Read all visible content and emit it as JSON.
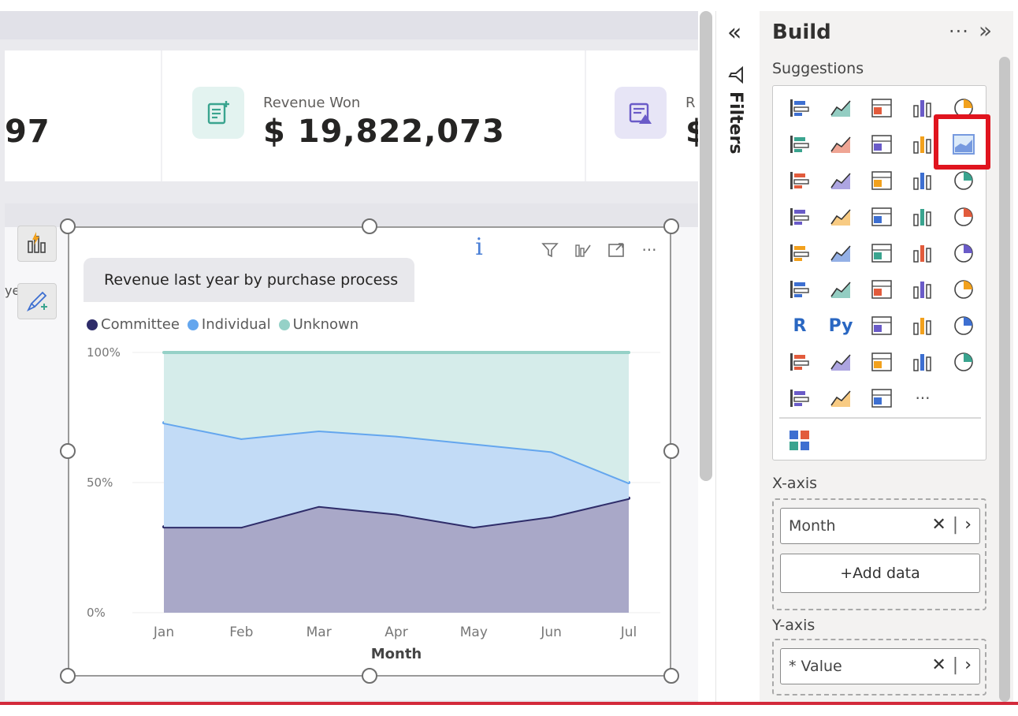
{
  "kpis": [
    {
      "value": "97"
    },
    {
      "label": "Revenue Won",
      "value": "$ 19,822,073"
    },
    {
      "label": "R",
      "value": "$"
    }
  ],
  "side_label": "year",
  "visual": {
    "title": "Revenue last year by purchase process",
    "info_label": "i",
    "legend": [
      {
        "name": "Committee",
        "color": "#2e2c69"
      },
      {
        "name": "Individual",
        "color": "#64a6ee"
      },
      {
        "name": "Unknown",
        "color": "#95d1c7"
      }
    ]
  },
  "chart_data": {
    "type": "area",
    "stacked_percent": true,
    "x": [
      "Jan",
      "Feb",
      "Mar",
      "Apr",
      "May",
      "Jun",
      "Jul"
    ],
    "xlabel": "Month",
    "ylabel": "",
    "y_ticks": [
      "0%",
      "50%",
      "100%"
    ],
    "ylim": [
      0,
      100
    ],
    "series": [
      {
        "name": "Committee",
        "values": [
          33,
          33,
          41,
          38,
          33,
          37,
          44
        ],
        "color": "#2e2c69",
        "fill": "#a9a8c8"
      },
      {
        "name": "Individual",
        "values": [
          40,
          34,
          29,
          30,
          32,
          25,
          6
        ],
        "color": "#64a6ee",
        "fill": "#c2dbf6"
      },
      {
        "name": "Unknown",
        "values": [
          27,
          33,
          30,
          32,
          35,
          38,
          50
        ],
        "color": "#95d1c7",
        "fill": "#d5ecea"
      }
    ]
  },
  "filters": {
    "label": "Filters"
  },
  "build": {
    "title": "Build",
    "more": "···",
    "suggestions_label": "Suggestions",
    "visual_icons": [
      "stacked-bar-chart-icon",
      "stacked-column-chart-icon",
      "clustered-bar-chart-icon",
      "clustered-column-chart-icon",
      "100-percent-bar-chart-icon",
      "100-percent-column-chart-icon",
      "line-chart-icon",
      "area-chart-icon",
      "stacked-area-chart-icon",
      "100-percent-stacked-area-chart-icon",
      "line-and-stacked-column-icon",
      "line-and-clustered-column-icon",
      "ribbon-chart-icon",
      "waterfall-chart-icon",
      "funnel-chart-icon",
      "scatter-chart-icon",
      "pie-chart-icon",
      "donut-chart-icon",
      "treemap-icon",
      "map-icon",
      "filled-map-icon",
      "shape-map-icon",
      "azure-map-icon",
      "gauge-icon",
      "card-icon",
      "multi-row-card-icon",
      "kpi-icon",
      "slicer-icon",
      "table-icon",
      "matrix-icon",
      "r-visual-icon",
      "python-visual-icon",
      "key-influencers-icon",
      "decomposition-tree-icon",
      "qa-icon",
      "smart-narrative-icon",
      "metrics-icon",
      "paginated-report-icon",
      "power-apps-icon",
      "power-automate-icon",
      "arcgis-map-icon",
      "power-apps-alt-icon",
      "power-automate-alt-icon",
      "more-visuals-icon"
    ],
    "r_label": "R",
    "py_label": "Py",
    "more_visuals_label": "···",
    "xaxis_label": "X-axis",
    "xaxis_field": "Month",
    "add_data_label": "+Add data",
    "yaxis_label": "Y-axis",
    "yaxis_field": "* Value"
  }
}
